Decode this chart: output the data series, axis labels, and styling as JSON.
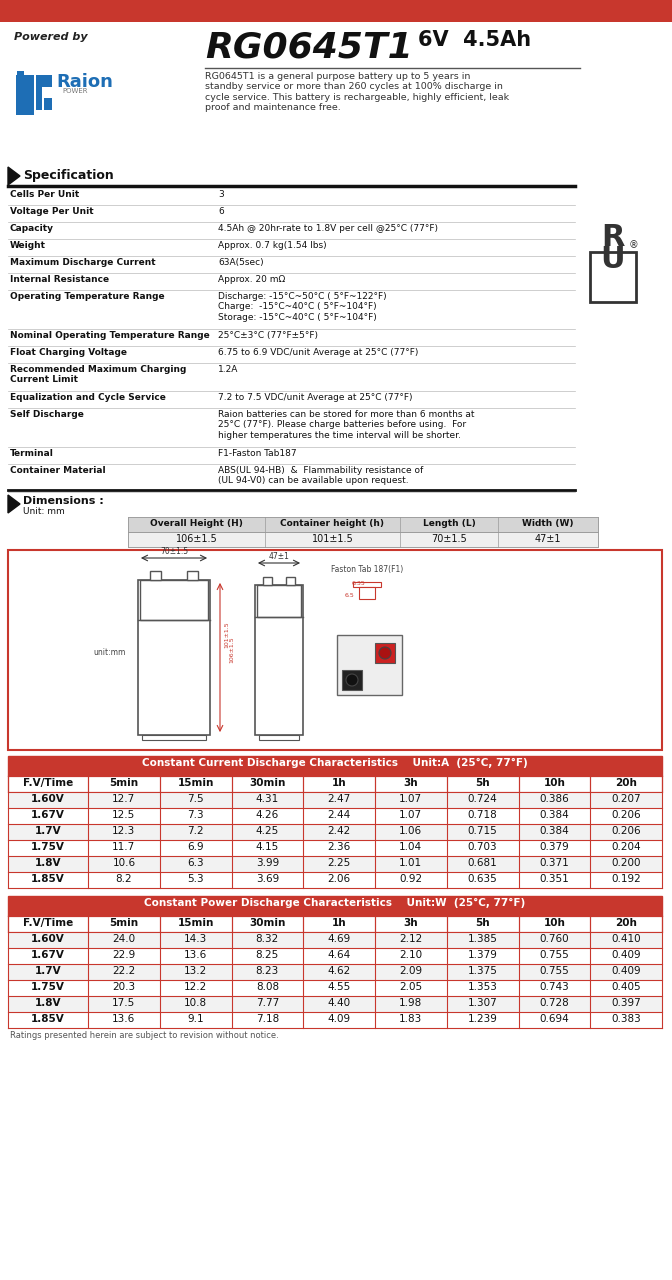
{
  "title_model": "RG0645T1",
  "title_spec": "6V  4.5Ah",
  "powered_by": "Powered by",
  "description": "RG0645T1 is a general purpose battery up to 5 years in\nstandby service or more than 260 cycles at 100% discharge in\ncycle service. This battery is rechargeable, highly efficient, leak\nproof and maintenance free.",
  "spec_title": "Specification",
  "spec_rows": [
    [
      "Cells Per Unit",
      "3"
    ],
    [
      "Voltage Per Unit",
      "6"
    ],
    [
      "Capacity",
      "4.5Ah @ 20hr-rate to 1.8V per cell @25°C (77°F)"
    ],
    [
      "Weight",
      "Approx. 0.7 kg(1.54 lbs)"
    ],
    [
      "Maximum Discharge Current",
      "63A(5sec)"
    ],
    [
      "Internal Resistance",
      "Approx. 20 mΩ"
    ],
    [
      "Operating Temperature Range",
      "Discharge: -15°C~50°C ( 5°F~122°F)\nCharge:  -15°C~40°C ( 5°F~104°F)\nStorage: -15°C~40°C ( 5°F~104°F)"
    ],
    [
      "Nominal Operating Temperature Range",
      "25°C±3°C (77°F±5°F)"
    ],
    [
      "Float Charging Voltage",
      "6.75 to 6.9 VDC/unit Average at 25°C (77°F)"
    ],
    [
      "Recommended Maximum Charging\nCurrent Limit",
      "1.2A"
    ],
    [
      "Equalization and Cycle Service",
      "7.2 to 7.5 VDC/unit Average at 25°C (77°F)"
    ],
    [
      "Self Discharge",
      "Raion batteries can be stored for more than 6 months at\n25°C (77°F). Please charge batteries before using.  For\nhigher temperatures the time interval will be shorter."
    ],
    [
      "Terminal",
      "F1-Faston Tab187"
    ],
    [
      "Container Material",
      "ABS(UL 94-HB)  &  Flammability resistance of\n(UL 94-V0) can be available upon request."
    ]
  ],
  "dim_title": "Dimensions :",
  "dim_unit": "Unit: mm",
  "dim_headers": [
    "Overall Height (H)",
    "Container height (h)",
    "Length (L)",
    "Width (W)"
  ],
  "dim_values": [
    "106±1.5",
    "101±1.5",
    "70±1.5",
    "47±1"
  ],
  "cc_title": "Constant Current Discharge Characteristics    Unit:A  (25°C, 77°F)",
  "cc_headers": [
    "F.V/Time",
    "5min",
    "15min",
    "30min",
    "1h",
    "3h",
    "5h",
    "10h",
    "20h"
  ],
  "cc_rows": [
    [
      "1.60V",
      "12.7",
      "7.5",
      "4.31",
      "2.47",
      "1.07",
      "0.724",
      "0.386",
      "0.207"
    ],
    [
      "1.67V",
      "12.5",
      "7.3",
      "4.26",
      "2.44",
      "1.07",
      "0.718",
      "0.384",
      "0.206"
    ],
    [
      "1.7V",
      "12.3",
      "7.2",
      "4.25",
      "2.42",
      "1.06",
      "0.715",
      "0.384",
      "0.206"
    ],
    [
      "1.75V",
      "11.7",
      "6.9",
      "4.15",
      "2.36",
      "1.04",
      "0.703",
      "0.379",
      "0.204"
    ],
    [
      "1.8V",
      "10.6",
      "6.3",
      "3.99",
      "2.25",
      "1.01",
      "0.681",
      "0.371",
      "0.200"
    ],
    [
      "1.85V",
      "8.2",
      "5.3",
      "3.69",
      "2.06",
      "0.92",
      "0.635",
      "0.351",
      "0.192"
    ]
  ],
  "cp_title": "Constant Power Discharge Characteristics    Unit:W  (25°C, 77°F)",
  "cp_headers": [
    "F.V/Time",
    "5min",
    "15min",
    "30min",
    "1h",
    "3h",
    "5h",
    "10h",
    "20h"
  ],
  "cp_rows": [
    [
      "1.60V",
      "24.0",
      "14.3",
      "8.32",
      "4.69",
      "2.12",
      "1.385",
      "0.760",
      "0.410"
    ],
    [
      "1.67V",
      "22.9",
      "13.6",
      "8.25",
      "4.64",
      "2.10",
      "1.379",
      "0.755",
      "0.409"
    ],
    [
      "1.7V",
      "22.2",
      "13.2",
      "8.23",
      "4.62",
      "2.09",
      "1.375",
      "0.755",
      "0.409"
    ],
    [
      "1.75V",
      "20.3",
      "12.2",
      "8.08",
      "4.55",
      "2.05",
      "1.353",
      "0.743",
      "0.405"
    ],
    [
      "1.8V",
      "17.5",
      "10.8",
      "7.77",
      "4.40",
      "1.98",
      "1.307",
      "0.728",
      "0.397"
    ],
    [
      "1.85V",
      "13.6",
      "9.1",
      "7.18",
      "4.09",
      "1.83",
      "1.239",
      "0.694",
      "0.383"
    ]
  ],
  "footer": "Ratings presented herein are subject to revision without notice.",
  "red_color": "#C8372D",
  "blue_raion": "#1E6EB5"
}
